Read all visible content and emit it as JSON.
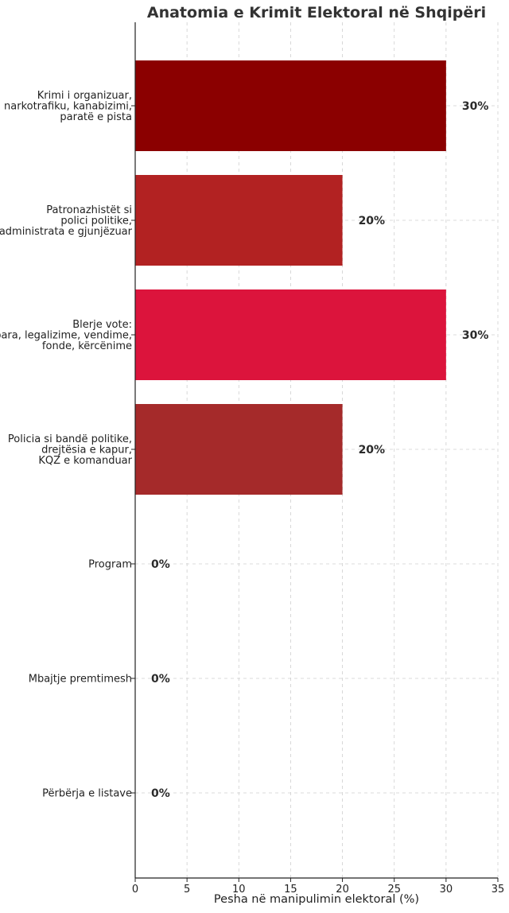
{
  "chart_data": {
    "type": "bar",
    "orientation": "horizontal",
    "title": "Anatomia e Krimit Elektoral në Shqipëri",
    "xlabel": "Pesha në manipulimin elektoral (%)",
    "ylabel": "",
    "xlim": [
      0,
      35
    ],
    "xticks": [
      0,
      5,
      10,
      15,
      20,
      25,
      30,
      35
    ],
    "grid": true,
    "categories": [
      [
        "Krimi i organizuar,",
        "narkotrafiku, kanabizimi,",
        "paratë e pista"
      ],
      [
        "Patronazhistët si",
        "polici politike,",
        "administrata e gjunjëzuar"
      ],
      [
        "Blerje vote:",
        "para, legalizime, vendime,",
        "fonde, kërcënime"
      ],
      [
        "Policia si bandë politike,",
        "drejtësia e kapur,",
        "KQZ e komanduar"
      ],
      [
        "Program"
      ],
      [
        "Mbajtje premtimesh"
      ],
      [
        "Përbërja e listave"
      ]
    ],
    "values": [
      30,
      20,
      30,
      20,
      0,
      0,
      0
    ],
    "value_labels": [
      "30%",
      "20%",
      "30%",
      "20%",
      "0%",
      "0%",
      "0%"
    ],
    "colors": [
      "#8b0000",
      "#b22222",
      "#dc143c",
      "#a52a2a",
      "#8b0000",
      "#8b0000",
      "#8b0000"
    ]
  }
}
